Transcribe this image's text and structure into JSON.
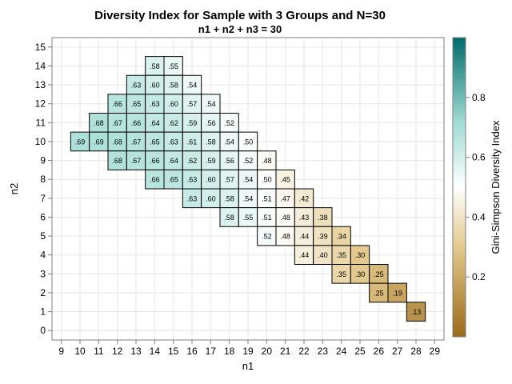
{
  "chart_data": {
    "type": "heatmap",
    "title": "Diversity Index for Sample with 3 Groups and N=30",
    "subtitle": "n1 + n2 + n3 = 30",
    "xlabel": "n1",
    "ylabel": "n2",
    "colorbar_label": "Gini-Simpson Diversity Index",
    "xlim": [
      8.5,
      29.5
    ],
    "ylim": [
      -0.5,
      15.5
    ],
    "x_ticks": [
      9,
      10,
      11,
      12,
      13,
      14,
      15,
      16,
      17,
      18,
      19,
      20,
      21,
      22,
      23,
      24,
      25,
      26,
      27,
      28,
      29
    ],
    "y_ticks": [
      0,
      1,
      2,
      3,
      4,
      5,
      6,
      7,
      8,
      9,
      10,
      11,
      12,
      13,
      14,
      15
    ],
    "color_range": [
      0.0,
      1.0
    ],
    "colorbar_ticks": [
      0.2,
      0.4,
      0.6,
      0.8
    ],
    "colors": {
      "low": "#9a6a17",
      "mid": "#ffffff",
      "high": "#006b6b"
    },
    "grid": true,
    "cells": [
      {
        "n1": 14,
        "n2": 14,
        "label": ".58",
        "value": 0.58
      },
      {
        "n1": 15,
        "n2": 14,
        "label": ".55",
        "value": 0.55
      },
      {
        "n1": 13,
        "n2": 13,
        "label": ".63",
        "value": 0.63
      },
      {
        "n1": 14,
        "n2": 13,
        "label": ".60",
        "value": 0.6
      },
      {
        "n1": 15,
        "n2": 13,
        "label": ".58",
        "value": 0.58
      },
      {
        "n1": 16,
        "n2": 13,
        "label": ".54",
        "value": 0.54
      },
      {
        "n1": 12,
        "n2": 12,
        "label": ".66",
        "value": 0.66
      },
      {
        "n1": 13,
        "n2": 12,
        "label": ".65",
        "value": 0.65
      },
      {
        "n1": 14,
        "n2": 12,
        "label": ".63",
        "value": 0.63
      },
      {
        "n1": 15,
        "n2": 12,
        "label": ".60",
        "value": 0.6
      },
      {
        "n1": 16,
        "n2": 12,
        "label": ".57",
        "value": 0.57
      },
      {
        "n1": 17,
        "n2": 12,
        "label": ".54",
        "value": 0.54
      },
      {
        "n1": 11,
        "n2": 11,
        "label": ".68",
        "value": 0.68
      },
      {
        "n1": 12,
        "n2": 11,
        "label": ".67",
        "value": 0.67
      },
      {
        "n1": 13,
        "n2": 11,
        "label": ".66",
        "value": 0.66
      },
      {
        "n1": 14,
        "n2": 11,
        "label": ".64",
        "value": 0.64
      },
      {
        "n1": 15,
        "n2": 11,
        "label": ".62",
        "value": 0.62
      },
      {
        "n1": 16,
        "n2": 11,
        "label": ".59",
        "value": 0.59
      },
      {
        "n1": 17,
        "n2": 11,
        "label": ".56",
        "value": 0.56
      },
      {
        "n1": 18,
        "n2": 11,
        "label": ".52",
        "value": 0.52
      },
      {
        "n1": 10,
        "n2": 10,
        "label": ".69",
        "value": 0.69
      },
      {
        "n1": 11,
        "n2": 10,
        "label": ".69",
        "value": 0.69
      },
      {
        "n1": 12,
        "n2": 10,
        "label": ".68",
        "value": 0.68
      },
      {
        "n1": 13,
        "n2": 10,
        "label": ".67",
        "value": 0.67
      },
      {
        "n1": 14,
        "n2": 10,
        "label": ".65",
        "value": 0.65
      },
      {
        "n1": 15,
        "n2": 10,
        "label": ".63",
        "value": 0.63
      },
      {
        "n1": 16,
        "n2": 10,
        "label": ".61",
        "value": 0.61
      },
      {
        "n1": 17,
        "n2": 10,
        "label": ".58",
        "value": 0.58
      },
      {
        "n1": 18,
        "n2": 10,
        "label": ".54",
        "value": 0.54
      },
      {
        "n1": 19,
        "n2": 10,
        "label": ".50",
        "value": 0.5
      },
      {
        "n1": 12,
        "n2": 9,
        "label": ".68",
        "value": 0.68
      },
      {
        "n1": 13,
        "n2": 9,
        "label": ".67",
        "value": 0.67
      },
      {
        "n1": 14,
        "n2": 9,
        "label": ".66",
        "value": 0.66
      },
      {
        "n1": 15,
        "n2": 9,
        "label": ".64",
        "value": 0.64
      },
      {
        "n1": 16,
        "n2": 9,
        "label": ".62",
        "value": 0.62
      },
      {
        "n1": 17,
        "n2": 9,
        "label": ".59",
        "value": 0.59
      },
      {
        "n1": 18,
        "n2": 9,
        "label": ".56",
        "value": 0.56
      },
      {
        "n1": 19,
        "n2": 9,
        "label": ".52",
        "value": 0.52
      },
      {
        "n1": 20,
        "n2": 9,
        "label": ".48",
        "value": 0.48
      },
      {
        "n1": 14,
        "n2": 8,
        "label": ".66",
        "value": 0.66
      },
      {
        "n1": 15,
        "n2": 8,
        "label": ".65",
        "value": 0.65
      },
      {
        "n1": 16,
        "n2": 8,
        "label": ".63",
        "value": 0.63
      },
      {
        "n1": 17,
        "n2": 8,
        "label": ".60",
        "value": 0.6
      },
      {
        "n1": 18,
        "n2": 8,
        "label": ".57",
        "value": 0.57
      },
      {
        "n1": 19,
        "n2": 8,
        "label": ".54",
        "value": 0.54
      },
      {
        "n1": 20,
        "n2": 8,
        "label": ".50",
        "value": 0.5
      },
      {
        "n1": 21,
        "n2": 8,
        "label": ".45",
        "value": 0.45
      },
      {
        "n1": 16,
        "n2": 7,
        "label": ".63",
        "value": 0.63
      },
      {
        "n1": 17,
        "n2": 7,
        "label": ".60",
        "value": 0.6
      },
      {
        "n1": 18,
        "n2": 7,
        "label": ".58",
        "value": 0.58
      },
      {
        "n1": 19,
        "n2": 7,
        "label": ".54",
        "value": 0.54
      },
      {
        "n1": 20,
        "n2": 7,
        "label": ".51",
        "value": 0.51
      },
      {
        "n1": 21,
        "n2": 7,
        "label": ".47",
        "value": 0.47
      },
      {
        "n1": 22,
        "n2": 7,
        "label": ".42",
        "value": 0.42
      },
      {
        "n1": 18,
        "n2": 6,
        "label": ".58",
        "value": 0.58
      },
      {
        "n1": 19,
        "n2": 6,
        "label": ".55",
        "value": 0.55
      },
      {
        "n1": 20,
        "n2": 6,
        "label": ".51",
        "value": 0.51
      },
      {
        "n1": 21,
        "n2": 6,
        "label": ".48",
        "value": 0.48
      },
      {
        "n1": 22,
        "n2": 6,
        "label": ".43",
        "value": 0.43
      },
      {
        "n1": 23,
        "n2": 6,
        "label": ".38",
        "value": 0.38
      },
      {
        "n1": 20,
        "n2": 5,
        "label": ".52",
        "value": 0.52
      },
      {
        "n1": 21,
        "n2": 5,
        "label": ".48",
        "value": 0.48
      },
      {
        "n1": 22,
        "n2": 5,
        "label": ".44",
        "value": 0.44
      },
      {
        "n1": 23,
        "n2": 5,
        "label": ".39",
        "value": 0.39
      },
      {
        "n1": 24,
        "n2": 5,
        "label": ".34",
        "value": 0.34
      },
      {
        "n1": 22,
        "n2": 4,
        "label": ".44",
        "value": 0.44
      },
      {
        "n1": 23,
        "n2": 4,
        "label": ".40",
        "value": 0.4
      },
      {
        "n1": 24,
        "n2": 4,
        "label": ".35",
        "value": 0.35
      },
      {
        "n1": 25,
        "n2": 4,
        "label": ".30",
        "value": 0.3
      },
      {
        "n1": 24,
        "n2": 3,
        "label": ".35",
        "value": 0.35
      },
      {
        "n1": 25,
        "n2": 3,
        "label": ".30",
        "value": 0.3
      },
      {
        "n1": 26,
        "n2": 3,
        "label": ".25",
        "value": 0.25
      },
      {
        "n1": 26,
        "n2": 2,
        "label": ".25",
        "value": 0.25
      },
      {
        "n1": 27,
        "n2": 2,
        "label": ".19",
        "value": 0.19
      },
      {
        "n1": 28,
        "n2": 1,
        "label": ".13",
        "value": 0.13
      }
    ]
  }
}
